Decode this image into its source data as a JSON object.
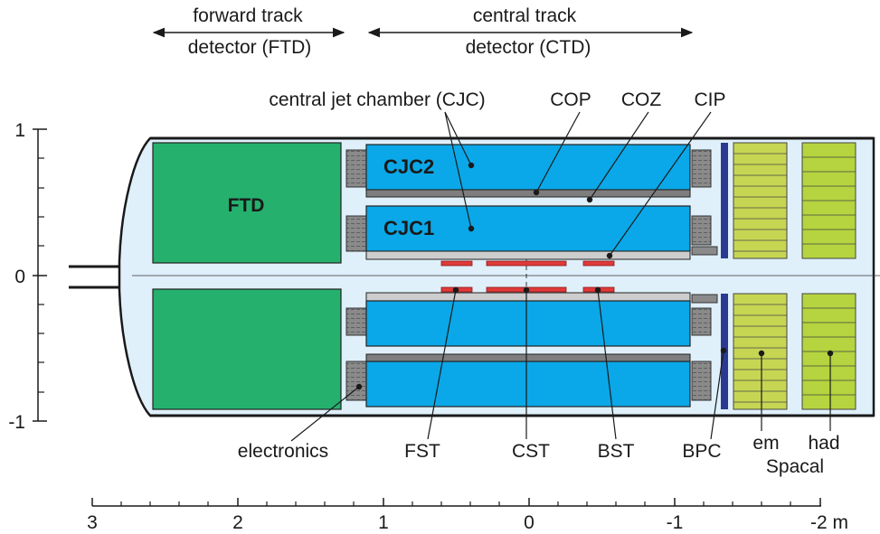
{
  "headers": {
    "ftd_line1": "forward track",
    "ftd_line2": "detector (FTD)",
    "ctd_line1": "central track",
    "ctd_line2": "detector (CTD)"
  },
  "top_labels": {
    "cjc": "central jet chamber (CJC)",
    "cop": "COP",
    "coz": "COZ",
    "cip": "CIP"
  },
  "component_labels": {
    "ftd": "FTD",
    "cjc2": "CJC2",
    "cjc1": "CJC1"
  },
  "bottom_labels": {
    "electronics": "electronics",
    "fst": "FST",
    "cst": "CST",
    "bst": "BST",
    "bpc": "BPC",
    "em": "em",
    "had": "had",
    "spacal": "Spacal"
  },
  "y_axis_ticks": [
    "1",
    "0",
    "-1"
  ],
  "x_axis_ticks": [
    "3",
    "2",
    "1",
    "0",
    "-1",
    "-2 m"
  ],
  "colors": {
    "vessel_fill": "#dff0fb",
    "ftd_green": "#25b06e",
    "cjc_blue": "#0aa8e8",
    "electronics_gray": "#8a8a8a",
    "bpc_navy": "#2a3a92",
    "em_spacal": "#c6d653",
    "had_spacal": "#b5d43f",
    "silicon_red": "#e03a3a"
  }
}
